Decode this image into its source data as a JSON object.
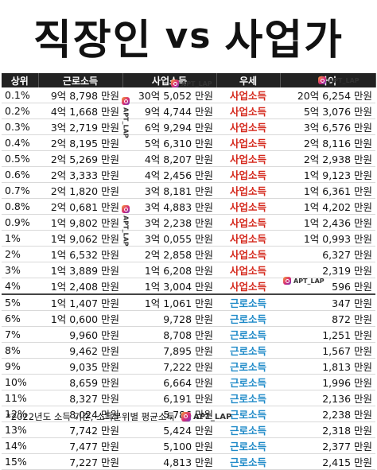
{
  "title": {
    "left": "직장인",
    "vs": "vs",
    "right": "사업가"
  },
  "watermark": "APT_LAP",
  "columns": [
    "상위",
    "근로소득",
    "사업소득",
    "우세",
    "차이"
  ],
  "rows_top": [
    {
      "rank": "0.1%",
      "wage": "9억 8,798 만원",
      "biz": "30억 5,052 만원",
      "win": "사업소득",
      "diff": "20억 6,254 만원"
    },
    {
      "rank": "0.2%",
      "wage": "4억 1,668 만원",
      "biz": "9억 4,744 만원",
      "win": "사업소득",
      "diff": "5억 3,076 만원"
    },
    {
      "rank": "0.3%",
      "wage": "3억 2,719 만원",
      "biz": "6억 9,294 만원",
      "win": "사업소득",
      "diff": "3억 6,576 만원"
    },
    {
      "rank": "0.4%",
      "wage": "2억 8,195 만원",
      "biz": "5억 6,310 만원",
      "win": "사업소득",
      "diff": "2억 8,116 만원"
    },
    {
      "rank": "0.5%",
      "wage": "2억 5,269 만원",
      "biz": "4억 8,207 만원",
      "win": "사업소득",
      "diff": "2억 2,938 만원"
    },
    {
      "rank": "0.6%",
      "wage": "2억 3,333 만원",
      "biz": "4억 2,456 만원",
      "win": "사업소득",
      "diff": "1억 9,123 만원"
    },
    {
      "rank": "0.7%",
      "wage": "2억 1,820 만원",
      "biz": "3억 8,181 만원",
      "win": "사업소득",
      "diff": "1억 6,361 만원"
    },
    {
      "rank": "0.8%",
      "wage": "2억 0,681 만원",
      "biz": "3억 4,883 만원",
      "win": "사업소득",
      "diff": "1억 4,202 만원"
    },
    {
      "rank": "0.9%",
      "wage": "1억 9,802 만원",
      "biz": "3억 2,238 만원",
      "win": "사업소득",
      "diff": "1억 2,436 만원"
    },
    {
      "rank": "1%",
      "wage": "1억 9,062 만원",
      "biz": "3억 0,055 만원",
      "win": "사업소득",
      "diff": "1억 0,993 만원"
    },
    {
      "rank": "2%",
      "wage": "1억 6,532 만원",
      "biz": "2억 2,858 만원",
      "win": "사업소득",
      "diff": "6,327 만원"
    },
    {
      "rank": "3%",
      "wage": "1억 3,889 만원",
      "biz": "1억 6,208 만원",
      "win": "사업소득",
      "diff": "2,319 만원"
    },
    {
      "rank": "4%",
      "wage": "1억 2,408 만원",
      "biz": "1억 3,004 만원",
      "win": "사업소득",
      "diff": "596 만원"
    }
  ],
  "rows_bottom": [
    {
      "rank": "5%",
      "wage": "1억 1,407 만원",
      "biz": "1억 1,061 만원",
      "win": "근로소득",
      "diff": "347 만원"
    },
    {
      "rank": "6%",
      "wage": "1억 0,600 만원",
      "biz": "9,728 만원",
      "win": "근로소득",
      "diff": "872 만원"
    },
    {
      "rank": "7%",
      "wage": "9,960 만원",
      "biz": "8,708 만원",
      "win": "근로소득",
      "diff": "1,251 만원"
    },
    {
      "rank": "8%",
      "wage": "9,462 만원",
      "biz": "7,895 만원",
      "win": "근로소득",
      "diff": "1,567 만원"
    },
    {
      "rank": "9%",
      "wage": "9,035 만원",
      "biz": "7,222 만원",
      "win": "근로소득",
      "diff": "1,813 만원"
    },
    {
      "rank": "10%",
      "wage": "8,659 만원",
      "biz": "6,664 만원",
      "win": "근로소득",
      "diff": "1,996 만원"
    },
    {
      "rank": "11%",
      "wage": "8,327 만원",
      "biz": "6,191 만원",
      "win": "근로소득",
      "diff": "2,136 만원"
    },
    {
      "rank": "12%",
      "wage": "8,024 만원",
      "biz": "5,786 만원",
      "win": "근로소득",
      "diff": "2,238 만원"
    },
    {
      "rank": "13%",
      "wage": "7,742 만원",
      "biz": "5,424 만원",
      "win": "근로소득",
      "diff": "2,318 만원"
    },
    {
      "rank": "14%",
      "wage": "7,477 만원",
      "biz": "5,100 만원",
      "win": "근로소득",
      "diff": "2,377 만원"
    },
    {
      "rank": "15%",
      "wage": "7,227 만원",
      "biz": "4,813 만원",
      "win": "근로소득",
      "diff": "2,415 만원"
    }
  ],
  "footnote": "*2022년도 소득 기준, 소득분위별 평균소득",
  "colors": {
    "biz": "#d4271b",
    "wage": "#1f8ac8",
    "header_bg": "#222222"
  }
}
